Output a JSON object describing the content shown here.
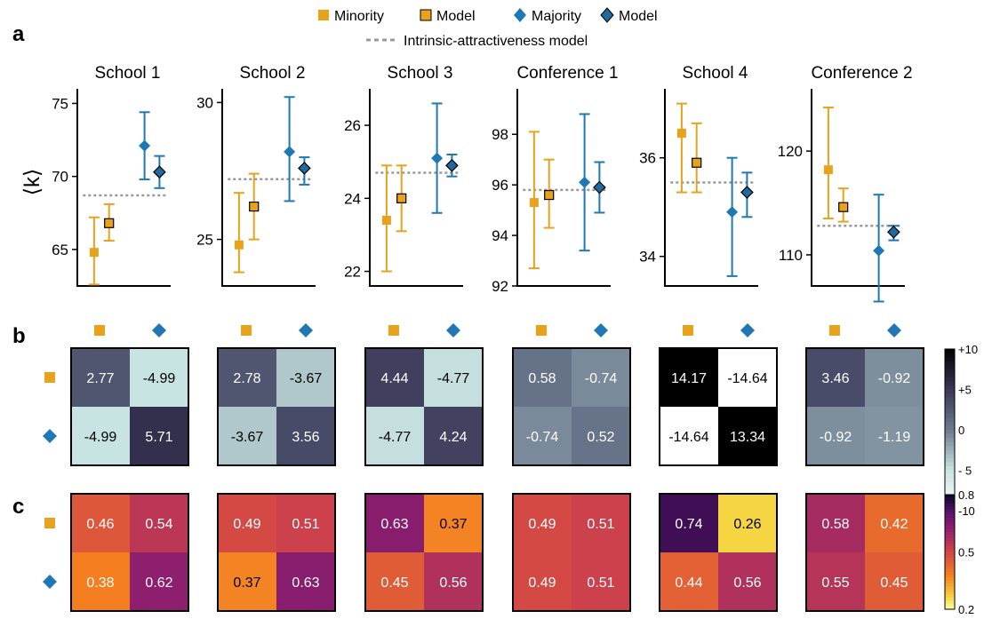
{
  "panel_labels": {
    "a": "a",
    "b": "b",
    "c": "c"
  },
  "legend": {
    "minority": "Minority",
    "model_1": "Model",
    "majority": "Majority",
    "model_2": "Model",
    "intrinsic": "Intrinsic-attractiveness model"
  },
  "y_axis_label": "⟨k⟩",
  "colors": {
    "minority": "#E8A21C",
    "majority": "#1F78B4",
    "model_minority_fill": "#E8A21C",
    "model_majority_fill": "#1F6A9E",
    "reference": "#999999"
  },
  "colorbars": {
    "b": {
      "ticks": [
        "+10",
        "+5",
        "0",
        "- 5",
        "-10"
      ],
      "range": [
        -10,
        10
      ]
    },
    "c": {
      "ticks": [
        "0.8",
        "0.5",
        "0.2"
      ],
      "range": [
        0.2,
        0.8
      ]
    }
  },
  "chart_data": [
    {
      "type": "scatter",
      "title": "School 1",
      "ylim": [
        62.5,
        76
      ],
      "yticks": [
        65,
        70,
        75
      ],
      "minority": {
        "mean": 64.8,
        "lo": 62.6,
        "hi": 67.2
      },
      "minority_model": {
        "mean": 66.8,
        "lo": 65.6,
        "hi": 68.1
      },
      "majority": {
        "mean": 72.1,
        "lo": 69.8,
        "hi": 74.4
      },
      "majority_model": {
        "mean": 70.3,
        "lo": 69.2,
        "hi": 71.4
      },
      "intrinsic": 68.7
    },
    {
      "type": "scatter",
      "title": "School 2",
      "ylim": [
        23.3,
        30.5
      ],
      "yticks": [
        25,
        30
      ],
      "minority": {
        "mean": 24.8,
        "lo": 23.8,
        "hi": 26.7
      },
      "minority_model": {
        "mean": 26.2,
        "lo": 25.0,
        "hi": 27.4
      },
      "majority": {
        "mean": 28.2,
        "lo": 26.4,
        "hi": 30.2
      },
      "majority_model": {
        "mean": 27.6,
        "lo": 27.0,
        "hi": 28.0
      },
      "intrinsic": 27.2
    },
    {
      "type": "scatter",
      "title": "School 3",
      "ylim": [
        21.6,
        27.0
      ],
      "yticks": [
        22,
        24,
        26
      ],
      "minority": {
        "mean": 23.4,
        "lo": 22.0,
        "hi": 24.9
      },
      "minority_model": {
        "mean": 24.0,
        "lo": 23.1,
        "hi": 24.9
      },
      "majority": {
        "mean": 25.1,
        "lo": 23.6,
        "hi": 26.6
      },
      "majority_model": {
        "mean": 24.9,
        "lo": 24.6,
        "hi": 25.2
      },
      "intrinsic": 24.7
    },
    {
      "type": "scatter",
      "title": "Conference 1",
      "ylim": [
        92,
        99.8
      ],
      "yticks": [
        92,
        94,
        96,
        98
      ],
      "minority": {
        "mean": 95.3,
        "lo": 92.7,
        "hi": 98.1
      },
      "minority_model": {
        "mean": 95.6,
        "lo": 94.3,
        "hi": 97.0
      },
      "majority": {
        "mean": 96.1,
        "lo": 93.4,
        "hi": 98.8
      },
      "majority_model": {
        "mean": 95.9,
        "lo": 94.9,
        "hi": 96.9
      },
      "intrinsic": 95.8
    },
    {
      "type": "scatter",
      "title": "School 4",
      "ylim": [
        33.4,
        37.4
      ],
      "yticks": [
        34,
        36
      ],
      "minority": {
        "mean": 36.5,
        "lo": 35.3,
        "hi": 37.1
      },
      "minority_model": {
        "mean": 35.9,
        "lo": 35.3,
        "hi": 36.7
      },
      "majority": {
        "mean": 34.9,
        "lo": 33.6,
        "hi": 36.0
      },
      "majority_model": {
        "mean": 35.3,
        "lo": 34.8,
        "hi": 35.7
      },
      "intrinsic": 35.5
    },
    {
      "type": "scatter",
      "title": "Conference 2",
      "ylim": [
        107,
        126
      ],
      "yticks": [
        110,
        120
      ],
      "minority": {
        "mean": 118.2,
        "lo": 113.5,
        "hi": 124.2
      },
      "minority_model": {
        "mean": 114.6,
        "lo": 113.2,
        "hi": 116.4
      },
      "majority": {
        "mean": 110.4,
        "lo": 105.5,
        "hi": 115.8
      },
      "majority_model": {
        "mean": 112.2,
        "lo": 111.4,
        "hi": 112.8
      },
      "intrinsic": 112.8
    },
    {
      "type": "heatmap",
      "panel": "b",
      "datasets": [
        {
          "title": "School 1",
          "values": [
            [
              2.77,
              -4.99
            ],
            [
              -4.99,
              5.71
            ]
          ],
          "labels": [
            [
              "2.77",
              "-4.99"
            ],
            [
              "-4.99",
              "5.71"
            ]
          ]
        },
        {
          "title": "School 2",
          "values": [
            [
              2.78,
              -3.67
            ],
            [
              -3.67,
              3.56
            ]
          ],
          "labels": [
            [
              "2.78",
              "-3.67"
            ],
            [
              "-3.67",
              "3.56"
            ]
          ]
        },
        {
          "title": "School 3",
          "values": [
            [
              4.44,
              -4.77
            ],
            [
              -4.77,
              4.24
            ]
          ],
          "labels": [
            [
              "4.44",
              "-4.77"
            ],
            [
              "-4.77",
              "4.24"
            ]
          ]
        },
        {
          "title": "Conference 1",
          "values": [
            [
              0.58,
              -0.74
            ],
            [
              -0.74,
              0.52
            ]
          ],
          "labels": [
            [
              "0.58",
              "-0.74"
            ],
            [
              "-0.74",
              "0.52"
            ]
          ]
        },
        {
          "title": "School 4",
          "values": [
            [
              14.17,
              -14.64
            ],
            [
              -14.64,
              13.34
            ]
          ],
          "labels": [
            [
              "14.17",
              "-14.64"
            ],
            [
              "-14.64",
              "13.34"
            ]
          ]
        },
        {
          "title": "Conference 2",
          "values": [
            [
              3.46,
              -0.92
            ],
            [
              -0.92,
              -1.19
            ]
          ],
          "labels": [
            [
              "3.46",
              "-0.92"
            ],
            [
              "-0.92",
              "-1.19"
            ]
          ]
        }
      ]
    },
    {
      "type": "heatmap",
      "panel": "c",
      "datasets": [
        {
          "title": "School 1",
          "values": [
            [
              0.46,
              0.54
            ],
            [
              0.38,
              0.62
            ]
          ],
          "labels": [
            [
              "0.46",
              "0.54"
            ],
            [
              "0.38",
              "0.62"
            ]
          ]
        },
        {
          "title": "School 2",
          "values": [
            [
              0.49,
              0.51
            ],
            [
              0.37,
              0.63
            ]
          ],
          "labels": [
            [
              "0.49",
              "0.51"
            ],
            [
              "0.37",
              "0.63"
            ]
          ]
        },
        {
          "title": "School 3",
          "values": [
            [
              0.63,
              0.37
            ],
            [
              0.45,
              0.56
            ]
          ],
          "labels": [
            [
              "0.63",
              "0.37"
            ],
            [
              "0.45",
              "0.56"
            ]
          ]
        },
        {
          "title": "Conference 1",
          "values": [
            [
              0.49,
              0.51
            ],
            [
              0.49,
              0.51
            ]
          ],
          "labels": [
            [
              "0.49",
              "0.51"
            ],
            [
              "0.49",
              "0.51"
            ]
          ]
        },
        {
          "title": "School 4",
          "values": [
            [
              0.74,
              0.26
            ],
            [
              0.44,
              0.56
            ]
          ],
          "labels": [
            [
              "0.74",
              "0.26"
            ],
            [
              "0.44",
              "0.56"
            ]
          ]
        },
        {
          "title": "Conference 2",
          "values": [
            [
              0.58,
              0.42
            ],
            [
              0.55,
              0.45
            ]
          ],
          "labels": [
            [
              "0.58",
              "0.42"
            ],
            [
              "0.55",
              "0.45"
            ]
          ]
        }
      ]
    }
  ]
}
